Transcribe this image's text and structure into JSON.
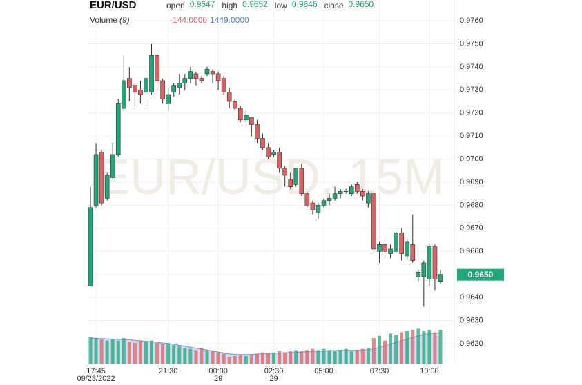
{
  "chart_data": {
    "type": "candlestick",
    "title": "EUR/USD",
    "watermark": "EUR/USD, 15M",
    "ohlc_legend": [
      {
        "label": "open",
        "value": "0.9647"
      },
      {
        "label": "high",
        "value": "0.9652"
      },
      {
        "label": "low",
        "value": "0.9646"
      },
      {
        "label": "close",
        "value": "0.9650"
      }
    ],
    "volume_legend": {
      "label": "Volume",
      "period": "(9)",
      "change": "-144.0000",
      "value": "1449.0000"
    },
    "last_price_label": {
      "value": 0.965,
      "label": "0.9650"
    },
    "up_color": "#22a67a",
    "down_color": "#e0605f",
    "volume_ma_color": "#7f9fe0",
    "categories": [
      null,
      "17:45",
      null,
      null,
      null,
      null,
      null,
      null,
      null,
      null,
      null,
      null,
      null,
      null,
      "21:30",
      null,
      null,
      null,
      null,
      null,
      null,
      null,
      null,
      "00:00",
      null,
      null,
      null,
      null,
      null,
      null,
      null,
      null,
      null,
      "02:30",
      null,
      null,
      null,
      null,
      null,
      null,
      null,
      null,
      "05:00",
      null,
      null,
      null,
      null,
      null,
      null,
      null,
      null,
      null,
      "07:30",
      null,
      null,
      null,
      null,
      null,
      null,
      null,
      null,
      "10:00",
      null,
      null
    ],
    "date_labels": [
      null,
      "09/28/2022",
      null,
      null,
      null,
      null,
      null,
      null,
      null,
      null,
      null,
      null,
      null,
      null,
      null,
      null,
      null,
      null,
      null,
      null,
      null,
      null,
      null,
      "29",
      null,
      null,
      null,
      null,
      null,
      null,
      null,
      null,
      null,
      "29",
      null,
      null,
      null,
      null,
      null,
      null,
      null,
      null,
      null,
      null,
      null,
      null,
      null,
      null,
      null,
      null,
      null,
      null,
      null,
      null,
      null,
      null,
      null,
      null,
      null,
      null,
      null,
      null,
      null,
      null,
      null,
      null
    ],
    "open": [
      0.9645,
      0.968,
      0.9703,
      0.9683,
      0.9692,
      0.9702,
      0.9722,
      0.9735,
      0.9732,
      0.973,
      0.9729,
      0.9729,
      0.9745,
      0.9734,
      0.9724,
      0.9729,
      0.9731,
      0.9733,
      0.9735,
      0.9737,
      0.9735,
      0.9737,
      0.9738,
      0.9737,
      0.9735,
      0.9729,
      0.9725,
      0.9722,
      0.9717,
      0.9718,
      0.9715,
      0.9709,
      0.9705,
      0.9702,
      0.9703,
      0.9696,
      0.9691,
      0.9689,
      0.9696,
      0.9685,
      0.9681,
      0.9677,
      0.968,
      0.9682,
      0.9683,
      0.9685,
      0.9686,
      0.9685,
      0.9689,
      0.9686,
      0.9681,
      0.9685,
      0.966,
      0.9663,
      0.9659,
      0.966,
      0.9668,
      0.9658,
      0.9663,
      0.9649,
      0.9649,
      0.9648,
      0.9662,
      0.9647
    ],
    "high": [
      0.9688,
      0.9707,
      0.9704,
      0.9694,
      0.9707,
      0.9726,
      0.9745,
      0.974,
      0.9733,
      0.9734,
      0.9738,
      0.975,
      0.9746,
      0.9735,
      0.9731,
      0.9733,
      0.9737,
      0.9737,
      0.974,
      0.9738,
      0.9736,
      0.974,
      0.9739,
      0.9738,
      0.9736,
      0.9731,
      0.9726,
      0.9723,
      0.9721,
      0.9718,
      0.9717,
      0.9711,
      0.9707,
      0.9704,
      0.9705,
      0.9697,
      0.9694,
      0.9696,
      0.9698,
      0.9686,
      0.9682,
      0.9681,
      0.9683,
      0.9685,
      0.9688,
      0.9687,
      0.9687,
      0.9689,
      0.969,
      0.9687,
      0.9686,
      0.9686,
      0.9664,
      0.9665,
      0.9663,
      0.9669,
      0.967,
      0.9665,
      0.9676,
      0.9652,
      0.9656,
      0.9663,
      0.9663,
      0.9652
    ],
    "low": [
      0.9645,
      0.9679,
      0.968,
      0.9682,
      0.9691,
      0.9701,
      0.9721,
      0.9725,
      0.9723,
      0.9724,
      0.9723,
      0.9728,
      0.973,
      0.9724,
      0.9721,
      0.9727,
      0.9728,
      0.973,
      0.9733,
      0.9732,
      0.9733,
      0.9736,
      0.9733,
      0.973,
      0.9728,
      0.9722,
      0.9721,
      0.9716,
      0.9716,
      0.971,
      0.9707,
      0.9704,
      0.97,
      0.9701,
      0.9694,
      0.9688,
      0.9687,
      0.9688,
      0.9684,
      0.9679,
      0.9676,
      0.9674,
      0.9679,
      0.968,
      0.9682,
      0.9683,
      0.9685,
      0.9684,
      0.9685,
      0.9682,
      0.9679,
      0.966,
      0.9655,
      0.9658,
      0.9657,
      0.9659,
      0.9656,
      0.9656,
      0.9655,
      0.9647,
      0.9636,
      0.9645,
      0.9643,
      0.9646
    ],
    "close": [
      0.9679,
      0.9702,
      0.9681,
      0.9693,
      0.9702,
      0.9724,
      0.9734,
      0.9731,
      0.9729,
      0.9728,
      0.9735,
      0.9745,
      0.9734,
      0.9726,
      0.9728,
      0.9732,
      0.9733,
      0.9735,
      0.9738,
      0.9735,
      0.9734,
      0.9739,
      0.9737,
      0.9734,
      0.9729,
      0.9725,
      0.9722,
      0.9717,
      0.9719,
      0.9715,
      0.9709,
      0.9705,
      0.9701,
      0.9703,
      0.9696,
      0.9693,
      0.9688,
      0.9696,
      0.9685,
      0.968,
      0.9678,
      0.968,
      0.9682,
      0.9683,
      0.9685,
      0.9686,
      0.9686,
      0.9688,
      0.9686,
      0.9684,
      0.9685,
      0.9661,
      0.9663,
      0.966,
      0.9661,
      0.9668,
      0.9659,
      0.9664,
      0.9656,
      0.9651,
      0.9655,
      0.9662,
      0.9648,
      0.965
    ],
    "volume": [
      1150,
      1100,
      1050,
      1000,
      1050,
      1000,
      1100,
      950,
      900,
      1000,
      950,
      1000,
      900,
      850,
      900,
      800,
      750,
      700,
      650,
      600,
      700,
      600,
      550,
      500,
      450,
      300,
      350,
      400,
      350,
      400,
      450,
      500,
      450,
      500,
      550,
      500,
      550,
      600,
      550,
      600,
      650,
      600,
      650,
      600,
      550,
      600,
      650,
      550,
      600,
      650,
      700,
      1100,
      1200,
      1000,
      1300,
      1250,
      1350,
      1400,
      1450,
      1500,
      1400,
      1450,
      1350,
      1449
    ],
    "volume_ma": [
      1100,
      1090,
      1080,
      1070,
      1060,
      1050,
      1040,
      1030,
      1010,
      990,
      970,
      950,
      930,
      900,
      870,
      840,
      800,
      760,
      720,
      680,
      640,
      600,
      560,
      520,
      480,
      440,
      420,
      410,
      410,
      420,
      430,
      450,
      460,
      470,
      480,
      490,
      500,
      510,
      520,
      530,
      540,
      550,
      560,
      570,
      580,
      590,
      590,
      590,
      590,
      600,
      610,
      650,
      720,
      780,
      850,
      920,
      990,
      1060,
      1130,
      1200,
      1260,
      1300,
      1320,
      1330
    ],
    "ylim": [
      0.9611,
      0.9769
    ],
    "yticks": [
      {
        "value": 0.962,
        "label": "0.9620"
      },
      {
        "value": 0.963,
        "label": "0.9630"
      },
      {
        "value": 0.964,
        "label": "0.9640"
      },
      {
        "value": 0.965,
        "label": "0.9650"
      },
      {
        "value": 0.966,
        "label": "0.9660"
      },
      {
        "value": 0.967,
        "label": "0.9670"
      },
      {
        "value": 0.968,
        "label": "0.9680"
      },
      {
        "value": 0.969,
        "label": "0.9690"
      },
      {
        "value": 0.97,
        "label": "0.9700"
      },
      {
        "value": 0.971,
        "label": "0.9710"
      },
      {
        "value": 0.972,
        "label": "0.9720"
      },
      {
        "value": 0.973,
        "label": "0.9730"
      },
      {
        "value": 0.974,
        "label": "0.9740"
      },
      {
        "value": 0.975,
        "label": "0.9750"
      },
      {
        "value": 0.976,
        "label": "0.9760"
      }
    ],
    "y2lim": [
      0,
      1600
    ],
    "grid": true
  }
}
